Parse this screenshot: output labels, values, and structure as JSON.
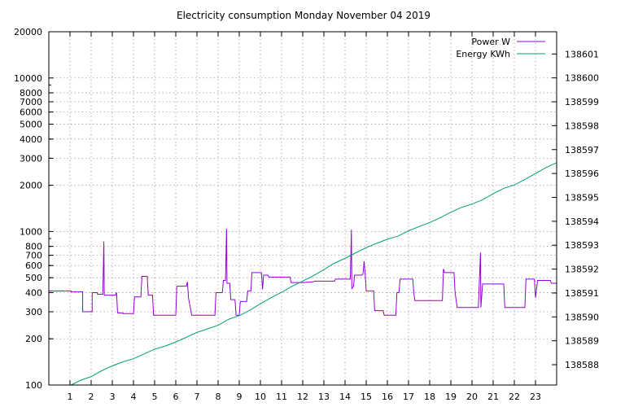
{
  "chart_data": {
    "type": "line",
    "title": "Electricity consumption Monday November 04 2019",
    "xlabel": "",
    "ylabel": "",
    "xlim": [
      0,
      24
    ],
    "x_ticks": [
      1,
      2,
      3,
      4,
      5,
      6,
      7,
      8,
      9,
      10,
      11,
      12,
      13,
      14,
      15,
      16,
      17,
      18,
      19,
      20,
      21,
      22,
      23
    ],
    "y_left": {
      "scale": "log",
      "range": [
        100,
        20000
      ],
      "ticks": [
        100,
        200,
        300,
        400,
        500,
        600,
        700,
        800,
        1000,
        2000,
        3000,
        4000,
        5000,
        6000,
        7000,
        8000,
        10000,
        20000
      ],
      "tick_labels": [
        "100",
        "200",
        "300",
        "400",
        "500",
        "600",
        "700",
        "800",
        "1000",
        "2000",
        "3000",
        "4000",
        "5000",
        "6000",
        "7000",
        "8000",
        "10000",
        "20000"
      ],
      "grid_ticks": [
        100,
        200,
        300,
        400,
        500,
        600,
        700,
        800,
        1000,
        2000,
        3000,
        4000,
        5000,
        6000,
        7000,
        8000,
        10000,
        20000
      ]
    },
    "y_right": {
      "scale": "linear",
      "range": [
        138587.15,
        138601.93
      ],
      "ticks": [
        138588,
        138589,
        138590,
        138591,
        138592,
        138593,
        138594,
        138595,
        138596,
        138597,
        138598,
        138599,
        138600,
        138601
      ],
      "tick_labels": [
        "138588",
        "138589",
        "138590",
        "138591",
        "138592",
        "138593",
        "138594",
        "138595",
        "138596",
        "138597",
        "138598",
        "138599",
        "138600",
        "138601"
      ]
    },
    "grid": true,
    "legend_position": "top-right",
    "series": [
      {
        "name": "Power W",
        "axis": "left",
        "color": "#9400d3",
        "points": [
          [
            0,
            410
          ],
          [
            1.05,
            410
          ],
          [
            1.05,
            405
          ],
          [
            1.6,
            405
          ],
          [
            1.6,
            300
          ],
          [
            2.05,
            300
          ],
          [
            2.05,
            400
          ],
          [
            2.3,
            400
          ],
          [
            2.3,
            390
          ],
          [
            2.55,
            390
          ],
          [
            2.6,
            860
          ],
          [
            2.62,
            385
          ],
          [
            3.15,
            385
          ],
          [
            3.2,
            400
          ],
          [
            3.25,
            295
          ],
          [
            3.5,
            295
          ],
          [
            3.5,
            292
          ],
          [
            4.0,
            292
          ],
          [
            4.05,
            375
          ],
          [
            4.35,
            375
          ],
          [
            4.4,
            510
          ],
          [
            4.65,
            510
          ],
          [
            4.7,
            385
          ],
          [
            4.9,
            385
          ],
          [
            4.95,
            285
          ],
          [
            5.5,
            285
          ],
          [
            6.0,
            285
          ],
          [
            6.05,
            440
          ],
          [
            6.5,
            440
          ],
          [
            6.55,
            470
          ],
          [
            6.6,
            370
          ],
          [
            6.75,
            285
          ],
          [
            7.5,
            285
          ],
          [
            7.85,
            285
          ],
          [
            7.9,
            400
          ],
          [
            8.2,
            400
          ],
          [
            8.25,
            480
          ],
          [
            8.35,
            480
          ],
          [
            8.4,
            1040
          ],
          [
            8.42,
            460
          ],
          [
            8.55,
            460
          ],
          [
            8.6,
            360
          ],
          [
            8.8,
            360
          ],
          [
            8.85,
            285
          ],
          [
            9.0,
            285
          ],
          [
            9.05,
            350
          ],
          [
            9.35,
            350
          ],
          [
            9.4,
            410
          ],
          [
            9.55,
            410
          ],
          [
            9.6,
            540
          ],
          [
            10.05,
            540
          ],
          [
            10.1,
            420
          ],
          [
            10.15,
            520
          ],
          [
            10.35,
            520
          ],
          [
            10.4,
            505
          ],
          [
            11.4,
            505
          ],
          [
            11.45,
            465
          ],
          [
            12.0,
            465
          ],
          [
            12.5,
            470
          ],
          [
            12.55,
            475
          ],
          [
            13.5,
            475
          ],
          [
            13.55,
            490
          ],
          [
            14.25,
            490
          ],
          [
            14.3,
            1030
          ],
          [
            14.32,
            425
          ],
          [
            14.4,
            440
          ],
          [
            14.45,
            520
          ],
          [
            14.8,
            520
          ],
          [
            14.85,
            530
          ],
          [
            14.9,
            640
          ],
          [
            14.95,
            530
          ],
          [
            15.0,
            410
          ],
          [
            15.35,
            410
          ],
          [
            15.4,
            305
          ],
          [
            15.8,
            305
          ],
          [
            15.85,
            285
          ],
          [
            16.4,
            285
          ],
          [
            16.45,
            400
          ],
          [
            16.55,
            400
          ],
          [
            16.6,
            490
          ],
          [
            17.2,
            490
          ],
          [
            17.25,
            400
          ],
          [
            17.3,
            355
          ],
          [
            18.15,
            355
          ],
          [
            18.6,
            355
          ],
          [
            18.65,
            570
          ],
          [
            18.7,
            540
          ],
          [
            19.15,
            540
          ],
          [
            19.2,
            400
          ],
          [
            19.3,
            320
          ],
          [
            20.3,
            320
          ],
          [
            20.4,
            730
          ],
          [
            20.42,
            320
          ],
          [
            20.5,
            455
          ],
          [
            21.5,
            455
          ],
          [
            21.55,
            320
          ],
          [
            22.5,
            320
          ],
          [
            22.55,
            490
          ],
          [
            22.95,
            490
          ],
          [
            23.0,
            370
          ],
          [
            23.1,
            480
          ],
          [
            23.7,
            480
          ],
          [
            23.75,
            460
          ],
          [
            24.0,
            460
          ]
        ]
      },
      {
        "name": "Energy KWh",
        "axis": "right",
        "color": "#009e73",
        "points": [
          [
            1.05,
            138587.15
          ],
          [
            1.5,
            138587.35
          ],
          [
            2.0,
            138587.5
          ],
          [
            2.5,
            138587.75
          ],
          [
            3.0,
            138587.95
          ],
          [
            3.5,
            138588.12
          ],
          [
            4.0,
            138588.25
          ],
          [
            4.5,
            138588.45
          ],
          [
            5.0,
            138588.65
          ],
          [
            5.5,
            138588.78
          ],
          [
            6.0,
            138588.95
          ],
          [
            6.5,
            138589.15
          ],
          [
            7.0,
            138589.35
          ],
          [
            7.5,
            138589.5
          ],
          [
            8.0,
            138589.65
          ],
          [
            8.5,
            138589.9
          ],
          [
            9.0,
            138590.05
          ],
          [
            9.5,
            138590.28
          ],
          [
            10.0,
            138590.55
          ],
          [
            10.5,
            138590.8
          ],
          [
            11.0,
            138591.03
          ],
          [
            11.5,
            138591.28
          ],
          [
            12.0,
            138591.5
          ],
          [
            12.5,
            138591.72
          ],
          [
            13.0,
            138591.98
          ],
          [
            13.5,
            138592.25
          ],
          [
            14.0,
            138592.45
          ],
          [
            14.5,
            138592.68
          ],
          [
            15.0,
            138592.9
          ],
          [
            15.5,
            138593.08
          ],
          [
            16.0,
            138593.25
          ],
          [
            16.5,
            138593.38
          ],
          [
            17.0,
            138593.6
          ],
          [
            17.5,
            138593.78
          ],
          [
            18.0,
            138593.95
          ],
          [
            18.5,
            138594.15
          ],
          [
            19.0,
            138594.38
          ],
          [
            19.5,
            138594.58
          ],
          [
            20.0,
            138594.72
          ],
          [
            20.5,
            138594.9
          ],
          [
            21.0,
            138595.15
          ],
          [
            21.5,
            138595.38
          ],
          [
            22.0,
            138595.52
          ],
          [
            22.5,
            138595.75
          ],
          [
            23.0,
            138596.0
          ],
          [
            23.5,
            138596.25
          ],
          [
            24.0,
            138596.45
          ]
        ]
      }
    ]
  }
}
